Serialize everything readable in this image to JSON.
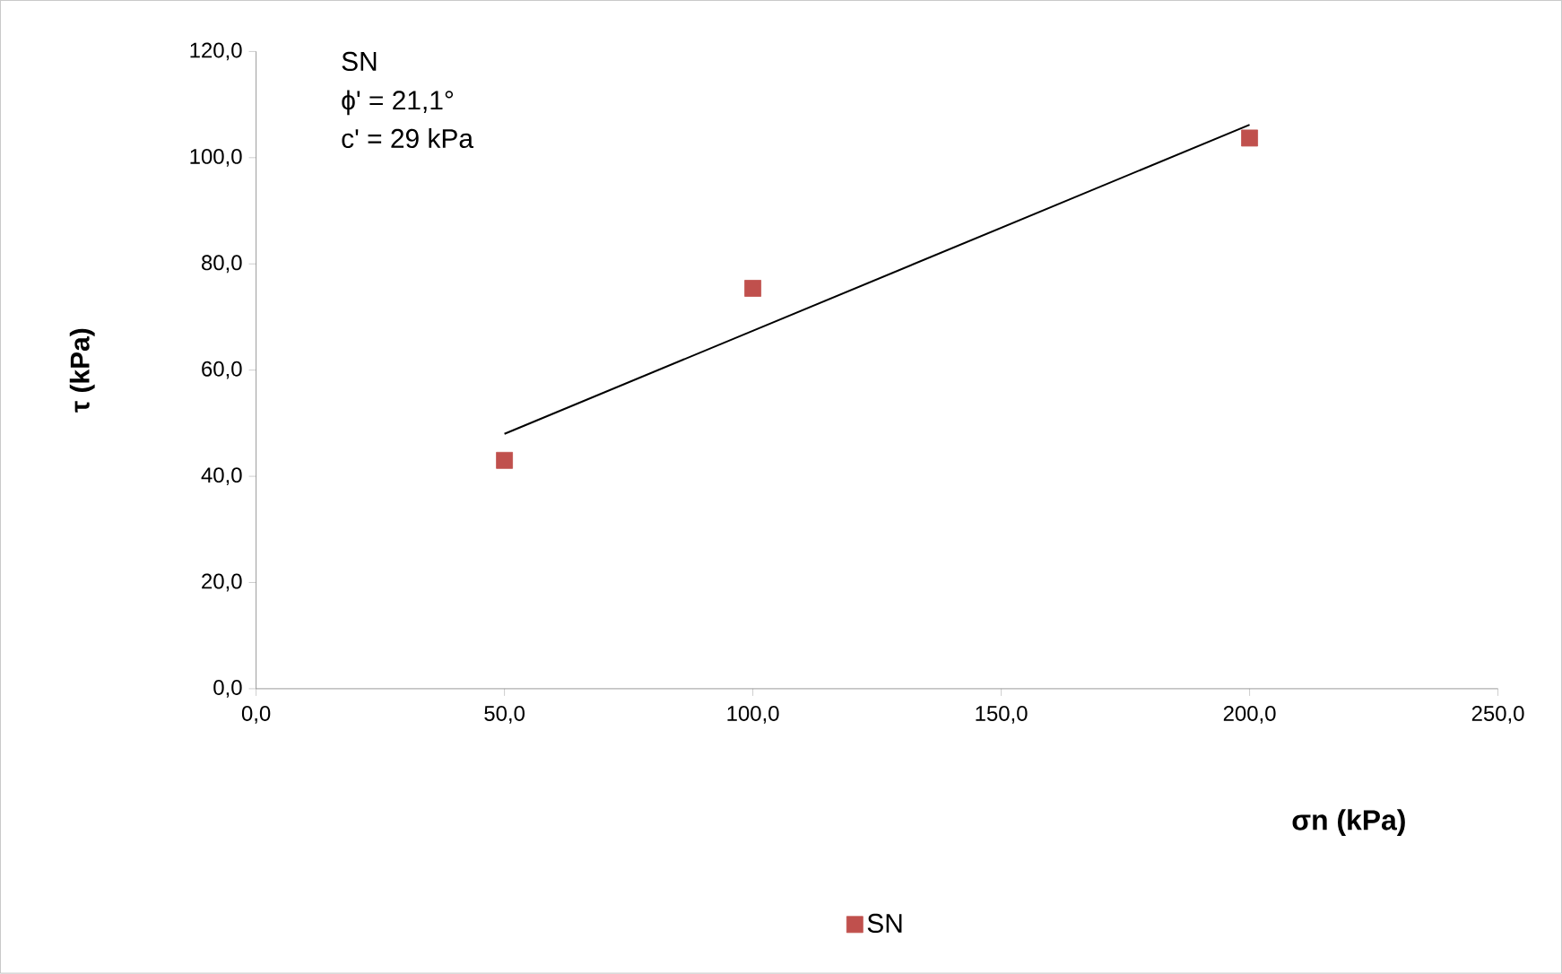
{
  "chart_data": {
    "type": "scatter",
    "xlabel": "σn (kPa)",
    "ylabel": "τ (kPa)",
    "annotations": [
      "SN",
      "ϕ' = 21,1°",
      "c' = 29 kPa"
    ],
    "xlim": [
      0,
      250
    ],
    "ylim": [
      0,
      120
    ],
    "xticks": [
      {
        "value": 0,
        "label": "0,0"
      },
      {
        "value": 50,
        "label": "50,0"
      },
      {
        "value": 100,
        "label": "100,0"
      },
      {
        "value": 150,
        "label": "150,0"
      },
      {
        "value": 200,
        "label": "200,0"
      },
      {
        "value": 250,
        "label": "250,0"
      }
    ],
    "yticks": [
      {
        "value": 0,
        "label": "0,0"
      },
      {
        "value": 20,
        "label": "20,0"
      },
      {
        "value": 40,
        "label": "40,0"
      },
      {
        "value": 60,
        "label": "60,0"
      },
      {
        "value": 80,
        "label": "80,0"
      },
      {
        "value": 100,
        "label": "100,0"
      },
      {
        "value": 120,
        "label": "120,0"
      }
    ],
    "grid": false,
    "legend": "bottom",
    "marker": "square",
    "series": [
      {
        "name": "SN",
        "color": "#c0504d",
        "x": [
          50,
          100,
          200
        ],
        "values": [
          43.0,
          75.4,
          103.7
        ]
      },
      {
        "type": "line",
        "marker": "none",
        "color": "#000000",
        "x": [
          50,
          200
        ],
        "values": [
          48.0,
          106.2
        ]
      }
    ]
  }
}
